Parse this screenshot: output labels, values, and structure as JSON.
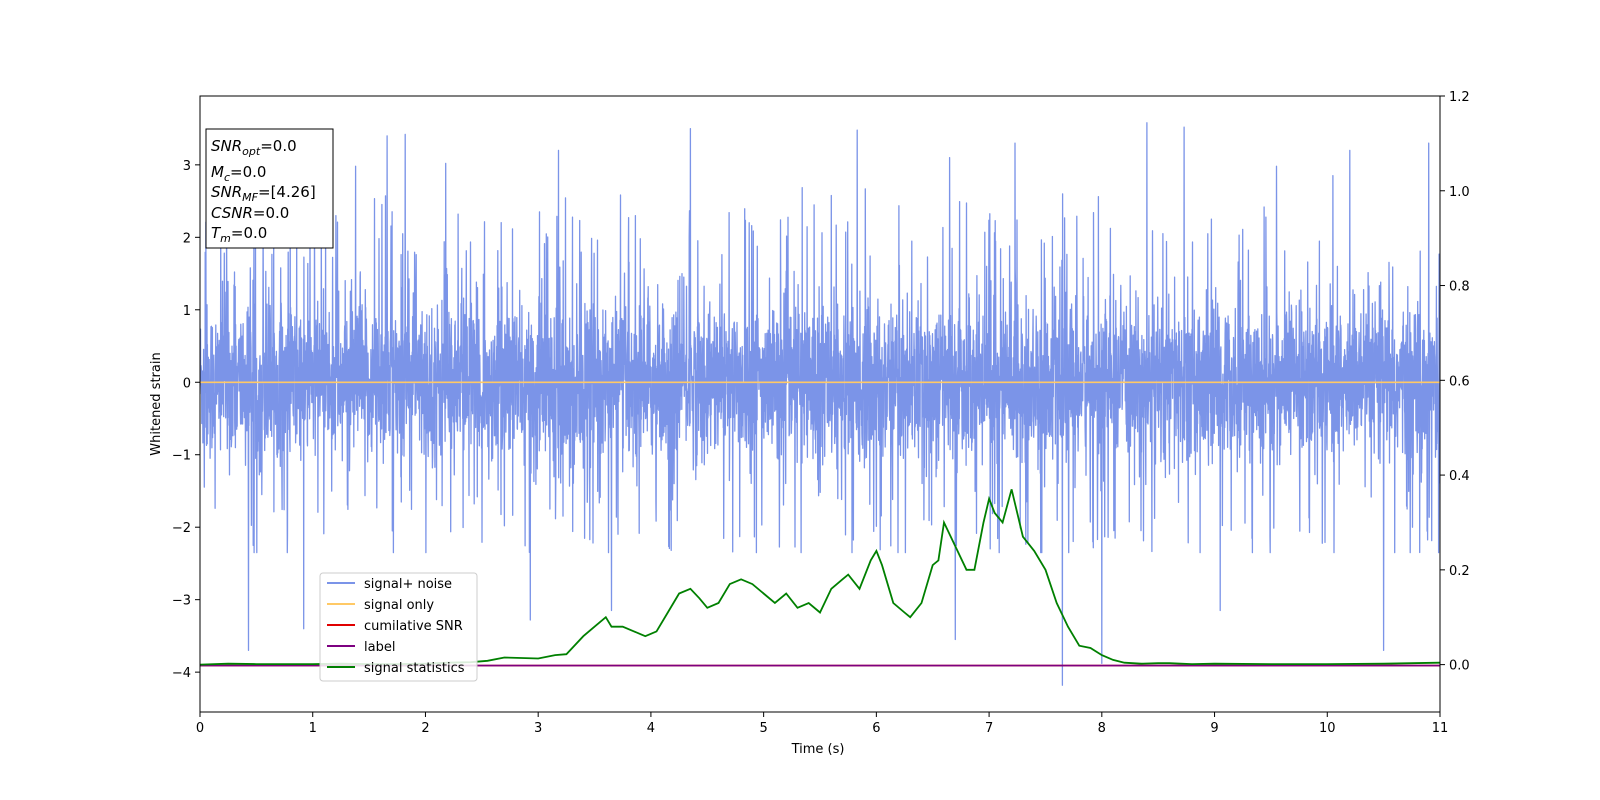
{
  "chart_data": {
    "type": "line",
    "title": "",
    "xlabel": "Time (s)",
    "ylabel": "Whitened strain",
    "xlim": [
      0,
      11
    ],
    "ylim": [
      -4.55,
      3.95
    ],
    "y2lim": [
      -0.1,
      1.2
    ],
    "xticks": [
      "0",
      "1",
      "2",
      "3",
      "4",
      "5",
      "6",
      "7",
      "8",
      "9",
      "10",
      "11"
    ],
    "yticks": [
      "−4",
      "−3",
      "−2",
      "−1",
      "0",
      "1",
      "2",
      "3"
    ],
    "y2ticks": [
      "0.0",
      "0.2",
      "0.4",
      "0.6",
      "0.8",
      "1.0",
      "1.2"
    ],
    "grid": false,
    "legend_position": "lower-left",
    "info_box": {
      "snr_opt": {
        "base": "SNR",
        "sub": "opt",
        "value": "=0.0"
      },
      "mc": {
        "base": "M",
        "sub": "c",
        "value": "=0.0"
      },
      "snr_mf": {
        "base": "SNR",
        "sub": "MF",
        "value": "=[4.26]"
      },
      "csnr": {
        "base": "CSNR",
        "value": "=0.0"
      },
      "tm": {
        "base": "T",
        "sub": "m",
        "value": "=0.0"
      }
    },
    "series": [
      {
        "name": "signal+ noise",
        "color": "#7b94e8",
        "axis": "left",
        "kind": "noise",
        "sigma": 0.85,
        "typical_max": 2.7,
        "typical_min": -2.4,
        "spikes": [
          {
            "x": 0.43,
            "y": -3.7
          },
          {
            "x": 1.66,
            "y": 3.4
          },
          {
            "x": 1.82,
            "y": 3.42
          },
          {
            "x": 0.92,
            "y": -3.4
          },
          {
            "x": 2.93,
            "y": -3.28
          },
          {
            "x": 3.65,
            "y": -3.15
          },
          {
            "x": 4.35,
            "y": 3.5
          },
          {
            "x": 5.83,
            "y": 3.48
          },
          {
            "x": 7.23,
            "y": 3.3
          },
          {
            "x": 7.65,
            "y": -4.18
          },
          {
            "x": 8.0,
            "y": -3.88
          },
          {
            "x": 8.4,
            "y": 3.58
          },
          {
            "x": 8.73,
            "y": 3.52
          },
          {
            "x": 9.05,
            "y": -3.15
          },
          {
            "x": 10.5,
            "y": -3.7
          },
          {
            "x": 10.2,
            "y": 3.2
          },
          {
            "x": 10.9,
            "y": 3.3
          },
          {
            "x": 6.7,
            "y": -3.55
          },
          {
            "x": 1.38,
            "y": 2.98
          },
          {
            "x": 2.18,
            "y": 3.02
          },
          {
            "x": 3.18,
            "y": 3.2
          },
          {
            "x": 6.65,
            "y": 3.1
          },
          {
            "x": 10.05,
            "y": 2.85
          },
          {
            "x": 9.55,
            "y": 2.98
          }
        ]
      },
      {
        "name": "signal only",
        "color": "#ffc966",
        "axis": "left",
        "x": [
          0,
          11
        ],
        "y": [
          0,
          0
        ]
      },
      {
        "name": "cumilative SNR",
        "color": "#e00000",
        "axis": "left",
        "x": [
          0,
          11
        ],
        "y": [
          -3.91,
          -3.91
        ]
      },
      {
        "name": "label",
        "color": "#7d0080",
        "axis": "left",
        "x": [
          0,
          11
        ],
        "y": [
          -3.91,
          -3.91
        ]
      },
      {
        "name": "signal statistics",
        "color": "#008000",
        "axis": "right",
        "x": [
          0,
          0.25,
          0.5,
          0.75,
          1.0,
          1.25,
          1.5,
          1.75,
          2.0,
          2.2,
          2.4,
          2.55,
          2.7,
          2.85,
          3.0,
          3.15,
          3.25,
          3.4,
          3.5,
          3.6,
          3.65,
          3.75,
          3.85,
          3.95,
          4.05,
          4.15,
          4.25,
          4.35,
          4.43,
          4.5,
          4.6,
          4.7,
          4.8,
          4.9,
          5.0,
          5.1,
          5.2,
          5.3,
          5.4,
          5.5,
          5.6,
          5.7,
          5.75,
          5.85,
          5.95,
          6.0,
          6.05,
          6.15,
          6.25,
          6.3,
          6.4,
          6.5,
          6.55,
          6.6,
          6.7,
          6.8,
          6.87,
          6.95,
          7.0,
          7.05,
          7.12,
          7.2,
          7.3,
          7.4,
          7.5,
          7.6,
          7.7,
          7.8,
          7.9,
          8.0,
          8.1,
          8.2,
          8.35,
          8.5,
          8.6,
          8.8,
          9.0,
          9.5,
          10.0,
          10.5,
          11.0
        ],
        "y": [
          0.0,
          0.002,
          0.001,
          0.001,
          0.001,
          0.002,
          0.001,
          0.001,
          0.002,
          0.004,
          0.005,
          0.008,
          0.015,
          0.014,
          0.013,
          0.02,
          0.022,
          0.06,
          0.08,
          0.1,
          0.08,
          0.08,
          0.07,
          0.06,
          0.07,
          0.11,
          0.15,
          0.16,
          0.14,
          0.12,
          0.13,
          0.17,
          0.18,
          0.17,
          0.15,
          0.13,
          0.15,
          0.12,
          0.13,
          0.11,
          0.16,
          0.18,
          0.19,
          0.16,
          0.22,
          0.24,
          0.21,
          0.13,
          0.11,
          0.1,
          0.13,
          0.21,
          0.22,
          0.3,
          0.25,
          0.2,
          0.2,
          0.3,
          0.35,
          0.32,
          0.3,
          0.37,
          0.27,
          0.24,
          0.2,
          0.13,
          0.08,
          0.04,
          0.035,
          0.02,
          0.01,
          0.004,
          0.002,
          0.003,
          0.003,
          0.001,
          0.002,
          0.001,
          0.001,
          0.002,
          0.004
        ]
      }
    ]
  }
}
